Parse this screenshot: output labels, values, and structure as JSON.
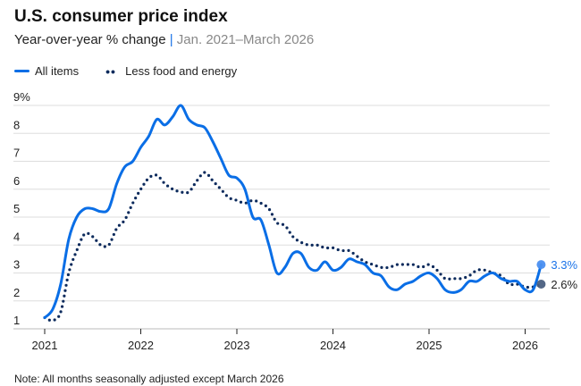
{
  "header": {
    "title": "U.S. consumer price index",
    "subtitle": "Year-over-year % change",
    "subtitle_separator": "|",
    "date_range": "Jan. 2021–March 2026"
  },
  "note": "Note: All months seasonally adjusted except March 2026",
  "chart_data": {
    "type": "line",
    "title": "U.S. consumer price index",
    "ylabel": "Year-over-year % change",
    "ylim": [
      1,
      9
    ],
    "yticks": [
      "1",
      "2",
      "3",
      "4",
      "5",
      "6",
      "7",
      "8",
      "9%"
    ],
    "xticks": [
      "2021",
      "2022",
      "2023",
      "2024",
      "2025",
      "2026"
    ],
    "x_start": "2021-01",
    "x_end": "2026-03",
    "grid": true,
    "legend": "top-left",
    "series": [
      {
        "name": "All items",
        "color": "#0a6ee6",
        "style": "solid",
        "end_label": "3.3%",
        "values": [
          1.4,
          1.7,
          2.6,
          4.2,
          5.0,
          5.3,
          5.3,
          5.2,
          5.3,
          6.2,
          6.8,
          7.0,
          7.5,
          7.9,
          8.5,
          8.3,
          8.6,
          9.0,
          8.5,
          8.3,
          8.2,
          7.7,
          7.1,
          6.5,
          6.4,
          6.0,
          5.0,
          4.9,
          4.0,
          3.0,
          3.2,
          3.7,
          3.7,
          3.2,
          3.1,
          3.4,
          3.1,
          3.2,
          3.5,
          3.4,
          3.3,
          3.0,
          2.9,
          2.5,
          2.4,
          2.6,
          2.7,
          2.9,
          3.0,
          2.8,
          2.4,
          2.3,
          2.4,
          2.7,
          2.7,
          2.9,
          3.0,
          2.8,
          2.7,
          2.7,
          2.4,
          2.4,
          3.3
        ]
      },
      {
        "name": "Less food and energy",
        "color": "#0b2a5c",
        "style": "dotted",
        "end_label": "2.6%",
        "values": [
          1.4,
          1.3,
          1.6,
          3.0,
          3.8,
          4.4,
          4.3,
          4.0,
          4.0,
          4.6,
          4.9,
          5.5,
          6.0,
          6.4,
          6.5,
          6.2,
          6.0,
          5.9,
          5.9,
          6.3,
          6.6,
          6.3,
          6.0,
          5.7,
          5.6,
          5.5,
          5.6,
          5.5,
          5.3,
          4.8,
          4.7,
          4.3,
          4.1,
          4.0,
          4.0,
          3.9,
          3.9,
          3.8,
          3.8,
          3.6,
          3.4,
          3.3,
          3.2,
          3.2,
          3.3,
          3.3,
          3.3,
          3.2,
          3.3,
          3.1,
          2.8,
          2.8,
          2.8,
          2.9,
          3.1,
          3.1,
          3.0,
          2.9,
          2.6,
          2.6,
          2.5,
          2.5,
          2.6
        ]
      }
    ]
  }
}
